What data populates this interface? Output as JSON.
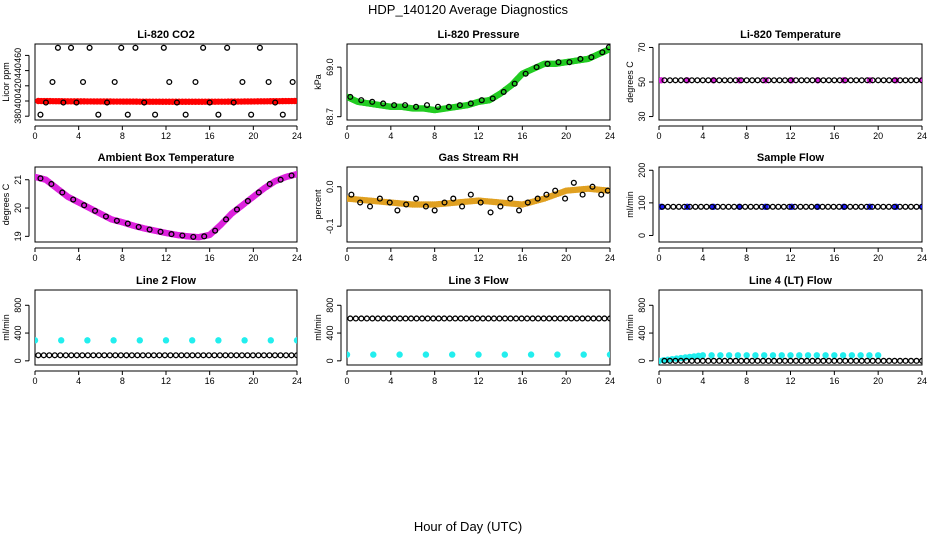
{
  "figure": {
    "title": "HDP_140120  Average Diagnostics",
    "xlabel": "Hour of Day (UTC)"
  },
  "colors": {
    "black": "#000000",
    "red": "#ff0000",
    "green": "#22cc22",
    "magenta": "#dd22dd",
    "orange": "#e0a020",
    "blue": "#1a1aff",
    "cyan": "#22eeee"
  },
  "chart_data": [
    {
      "type": "scatter",
      "title": "Li-820 CO2",
      "ylabel": "Licor ppm",
      "xlim": [
        0,
        24
      ],
      "xticks": [
        0,
        4,
        8,
        12,
        16,
        20,
        24
      ],
      "ylim": [
        375,
        475
      ],
      "yticks": [
        380,
        400,
        420,
        440,
        460
      ],
      "series": [
        {
          "name": "CO2 average",
          "color": "red",
          "marker": "filled",
          "x": [
            0.3,
            3,
            6,
            9,
            12,
            15,
            18,
            21,
            23.8
          ],
          "y": [
            400,
            399.6,
            399.4,
            399.2,
            399.0,
            399.0,
            399.2,
            399.6,
            400
          ]
        },
        {
          "name": "CO2 readings",
          "color": "black",
          "marker": "open",
          "x": [
            0.5,
            1.0,
            1.6,
            2.1,
            2.6,
            3.3,
            3.8,
            4.4,
            5.0,
            5.8,
            6.6,
            7.3,
            7.9,
            8.5,
            9.2,
            10.0,
            11.0,
            11.8,
            12.3,
            13.0,
            13.8,
            14.7,
            15.4,
            16.0,
            16.8,
            17.6,
            18.2,
            19.0,
            19.8,
            20.6,
            21.4,
            22.0,
            22.7,
            23.6
          ],
          "y": [
            382,
            398,
            425,
            470,
            398,
            470,
            398,
            425,
            470,
            382,
            398,
            425,
            470,
            382,
            470,
            398,
            382,
            470,
            425,
            398,
            382,
            425,
            470,
            398,
            382,
            470,
            398,
            425,
            382,
            470,
            425,
            398,
            382,
            425
          ]
        }
      ]
    },
    {
      "type": "scatter",
      "title": "Li-820 Pressure",
      "ylabel": "kPa",
      "xlim": [
        0,
        24
      ],
      "xticks": [
        0,
        4,
        8,
        12,
        16,
        20,
        24
      ],
      "ylim": [
        68.68,
        69.14
      ],
      "yticks": [
        68.7,
        69.0
      ],
      "series": [
        {
          "name": "Pressure readings",
          "color": "green",
          "marker": "filled",
          "x": [
            0,
            1,
            2,
            3,
            4,
            5,
            6,
            7,
            8,
            9,
            10,
            11,
            12,
            13,
            14,
            15,
            16,
            17,
            18,
            19,
            20,
            21,
            22,
            23,
            24
          ],
          "y": [
            68.82,
            68.79,
            68.78,
            68.77,
            68.76,
            68.76,
            68.75,
            68.75,
            68.74,
            68.75,
            68.76,
            68.77,
            68.79,
            68.8,
            68.84,
            68.89,
            68.96,
            68.99,
            69.02,
            69.02,
            69.03,
            69.04,
            69.05,
            69.08,
            69.11
          ]
        },
        {
          "name": "Pressure average",
          "color": "black",
          "marker": "open",
          "x": [
            0.3,
            1.3,
            2.3,
            3.3,
            4.3,
            5.3,
            6.3,
            7.3,
            8.3,
            9.3,
            10.3,
            11.3,
            12.3,
            13.3,
            14.3,
            15.3,
            16.3,
            17.3,
            18.3,
            19.3,
            20.3,
            21.3,
            22.3,
            23.3,
            23.9
          ],
          "y": [
            68.82,
            68.8,
            68.79,
            68.78,
            68.77,
            68.77,
            68.76,
            68.77,
            68.76,
            68.76,
            68.77,
            68.78,
            68.8,
            68.81,
            68.85,
            68.9,
            68.96,
            69.0,
            69.02,
            69.03,
            69.03,
            69.05,
            69.06,
            69.09,
            69.12
          ]
        }
      ]
    },
    {
      "type": "scatter",
      "title": "Li-820 Temperature",
      "ylabel": "degrees C",
      "xlim": [
        0,
        24
      ],
      "xticks": [
        0,
        4,
        8,
        12,
        16,
        20,
        24
      ],
      "ylim": [
        28,
        72
      ],
      "yticks": [
        30,
        50,
        70
      ],
      "series": [
        {
          "name": "Li-820 temperature average",
          "color": "magenta",
          "marker": "filled",
          "x": [
            0.2,
            24
          ],
          "y": [
            51,
            51
          ]
        },
        {
          "name": "Li-820 temperature readings",
          "color": "black",
          "marker": "open",
          "x": [
            0.5,
            24
          ],
          "y": [
            51,
            51
          ],
          "count": 48
        }
      ]
    },
    {
      "type": "scatter",
      "title": "Ambient Box Temperature",
      "ylabel": "degrees C",
      "xlim": [
        0,
        24
      ],
      "xticks": [
        0,
        4,
        8,
        12,
        16,
        20,
        24
      ],
      "ylim": [
        18.8,
        21.45
      ],
      "yticks": [
        19.0,
        20.0,
        21.0
      ],
      "series": [
        {
          "name": "Ambient temperature average",
          "color": "magenta",
          "marker": "filled",
          "x": [
            0,
            1,
            2,
            3,
            4,
            5,
            6,
            7,
            8,
            9,
            10,
            11,
            12,
            13,
            14,
            15,
            16,
            17,
            18,
            19,
            20,
            21,
            22,
            23,
            24
          ],
          "y": [
            21.1,
            21.0,
            20.7,
            20.4,
            20.2,
            20.0,
            19.8,
            19.6,
            19.5,
            19.38,
            19.28,
            19.2,
            19.12,
            19.05,
            19.0,
            18.97,
            19.05,
            19.4,
            19.8,
            20.1,
            20.4,
            20.7,
            20.95,
            21.1,
            21.2
          ]
        },
        {
          "name": "Ambient temperature readings",
          "color": "black",
          "marker": "open",
          "x": [
            0.5,
            1.5,
            2.5,
            3.5,
            4.5,
            5.5,
            6.5,
            7.5,
            8.5,
            9.5,
            10.5,
            11.5,
            12.5,
            13.5,
            14.5,
            15.5,
            16.5,
            17.5,
            18.5,
            19.5,
            20.5,
            21.5,
            22.5,
            23.5
          ],
          "y": [
            21.05,
            20.85,
            20.55,
            20.3,
            20.1,
            19.9,
            19.7,
            19.55,
            19.45,
            19.33,
            19.24,
            19.16,
            19.08,
            19.03,
            18.98,
            19.0,
            19.2,
            19.6,
            19.95,
            20.25,
            20.55,
            20.85,
            21.0,
            21.15
          ]
        }
      ]
    },
    {
      "type": "scatter",
      "title": "Gas Stream RH",
      "ylabel": "percent",
      "xlim": [
        0,
        24
      ],
      "xticks": [
        0,
        4,
        8,
        12,
        16,
        20,
        24
      ],
      "ylim": [
        -0.14,
        0.05
      ],
      "yticks": [
        -0.1,
        0.0
      ],
      "series": [
        {
          "name": "RH readings",
          "color": "orange",
          "marker": "filled",
          "x": [
            0,
            2,
            4,
            6,
            8,
            10,
            12,
            14,
            16,
            18,
            20,
            22,
            24
          ],
          "y": [
            -0.03,
            -0.035,
            -0.04,
            -0.045,
            -0.045,
            -0.04,
            -0.035,
            -0.04,
            -0.045,
            -0.03,
            -0.01,
            -0.005,
            -0.01
          ]
        },
        {
          "name": "RH average",
          "color": "black",
          "marker": "open",
          "x": [
            0.4,
            1.2,
            2.1,
            3.0,
            3.9,
            4.6,
            5.4,
            6.3,
            7.2,
            8.0,
            8.9,
            9.7,
            10.5,
            11.3,
            12.2,
            13.1,
            14.0,
            14.9,
            15.7,
            16.5,
            17.4,
            18.2,
            19.0,
            19.9,
            20.7,
            21.5,
            22.4,
            23.2,
            23.8
          ],
          "y": [
            -0.02,
            -0.04,
            -0.05,
            -0.03,
            -0.04,
            -0.06,
            -0.045,
            -0.03,
            -0.05,
            -0.06,
            -0.04,
            -0.03,
            -0.05,
            -0.02,
            -0.04,
            -0.065,
            -0.05,
            -0.03,
            -0.06,
            -0.04,
            -0.03,
            -0.02,
            -0.01,
            -0.03,
            0.01,
            -0.02,
            0.0,
            -0.02,
            -0.01
          ]
        }
      ]
    },
    {
      "type": "scatter",
      "title": "Sample Flow",
      "ylabel": "ml/min",
      "xlim": [
        0,
        24
      ],
      "xticks": [
        0,
        4,
        8,
        12,
        16,
        20,
        24
      ],
      "ylim": [
        -20,
        210
      ],
      "yticks": [
        0,
        100,
        200
      ],
      "series": [
        {
          "name": "Sample flow readings",
          "color": "blue",
          "marker": "filled",
          "x": [
            0.2,
            24
          ],
          "y": [
            88,
            88
          ]
        },
        {
          "name": "Sample flow average",
          "color": "black",
          "marker": "open",
          "x": [
            0.3,
            24
          ],
          "y": [
            88,
            88
          ],
          "count": 48
        }
      ]
    },
    {
      "type": "scatter",
      "title": "Line 2 Flow",
      "ylabel": "ml/min",
      "xlim": [
        0,
        24
      ],
      "xticks": [
        0,
        4,
        8,
        12,
        16,
        20,
        24
      ],
      "ylim": [
        -60,
        1020
      ],
      "yticks": [
        0,
        400,
        800
      ],
      "series": [
        {
          "name": "Line 2 flow readings",
          "color": "cyan",
          "marker": "filled",
          "x": [
            0,
            24
          ],
          "y": [
            295,
            295
          ]
        },
        {
          "name": "Line 2 flow average",
          "color": "black",
          "marker": "open",
          "x": [
            0.3,
            24
          ],
          "y": [
            80,
            80
          ],
          "count": 48
        }
      ]
    },
    {
      "type": "scatter",
      "title": "Line 3 Flow",
      "ylabel": "ml/min",
      "xlim": [
        0,
        24
      ],
      "xticks": [
        0,
        4,
        8,
        12,
        16,
        20,
        24
      ],
      "ylim": [
        -60,
        1020
      ],
      "yticks": [
        0,
        400,
        800
      ],
      "series": [
        {
          "name": "Line 3 flow readings",
          "color": "cyan",
          "marker": "filled",
          "x": [
            0,
            24
          ],
          "y": [
            90,
            90
          ]
        },
        {
          "name": "Line 3 flow average",
          "color": "black",
          "marker": "open",
          "x": [
            0.3,
            24
          ],
          "y": [
            610,
            610
          ],
          "count": 48
        }
      ]
    },
    {
      "type": "scatter",
      "title": "Line 4 (LT) Flow",
      "ylabel": "ml/min",
      "xlim": [
        0,
        24
      ],
      "xticks": [
        0,
        4,
        8,
        12,
        16,
        20,
        24
      ],
      "ylim": [
        -60,
        1020
      ],
      "yticks": [
        0,
        400,
        800
      ],
      "series": [
        {
          "name": "Line 4 flow readings",
          "color": "cyan",
          "marker": "filled",
          "x": [
            0,
            4,
            12,
            20
          ],
          "y": [
            0,
            80,
            80,
            80
          ]
        },
        {
          "name": "Line 4 flow average",
          "color": "black",
          "marker": "open",
          "x": [
            0.5,
            24
          ],
          "y": [
            0,
            0
          ],
          "count": 48
        }
      ]
    }
  ]
}
